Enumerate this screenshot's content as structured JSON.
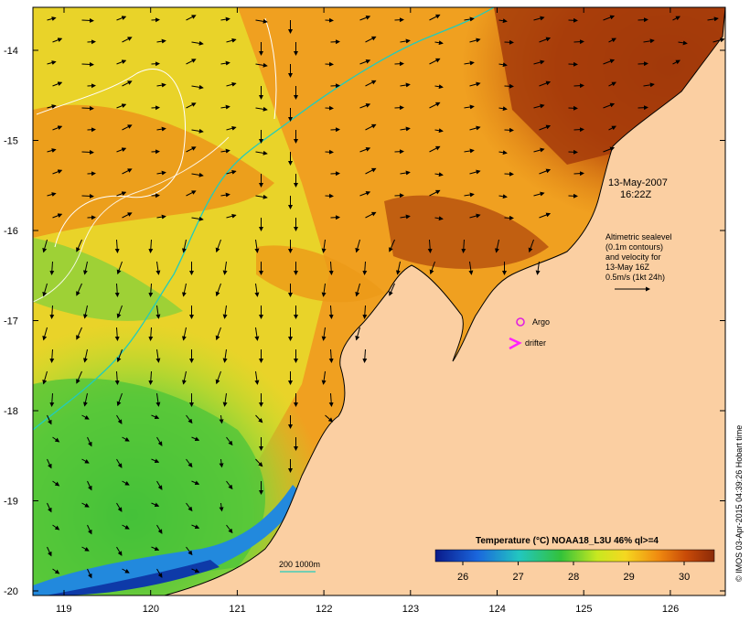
{
  "map": {
    "timestamp_date": "13-May-2007",
    "timestamp_time": "16:22Z",
    "altimetry_lines": [
      "Altimetric sealevel",
      "(0.1m contours)",
      "and velocity for",
      "13-May 16Z",
      "0.5m/s (1kt 24h)"
    ],
    "legend_argo": "Argo",
    "legend_drifter": "drifter",
    "bathymetry_label": "200  1000m",
    "colorbar_title": "Temperature (°C) NOAA18_L3U 46% ql>=4",
    "colorbar_ticks": [
      "26",
      "27",
      "28",
      "29",
      "30"
    ],
    "y_ticks": [
      "-14",
      "-15",
      "-16",
      "-17",
      "-18",
      "-19",
      "-20"
    ],
    "x_ticks": [
      "119",
      "120",
      "121",
      "122",
      "123",
      "124",
      "125",
      "126"
    ],
    "credit": "© IMOS 03-Apr-2015 04:39:26 Hobart time"
  },
  "colors": {
    "land": "#fbcfa2",
    "argo": "#e020e0",
    "drifter": "#ff20ff",
    "bathy_line": "#22ccbb",
    "warmest": "#8b2a08",
    "coolest": "#0a1a8a"
  }
}
